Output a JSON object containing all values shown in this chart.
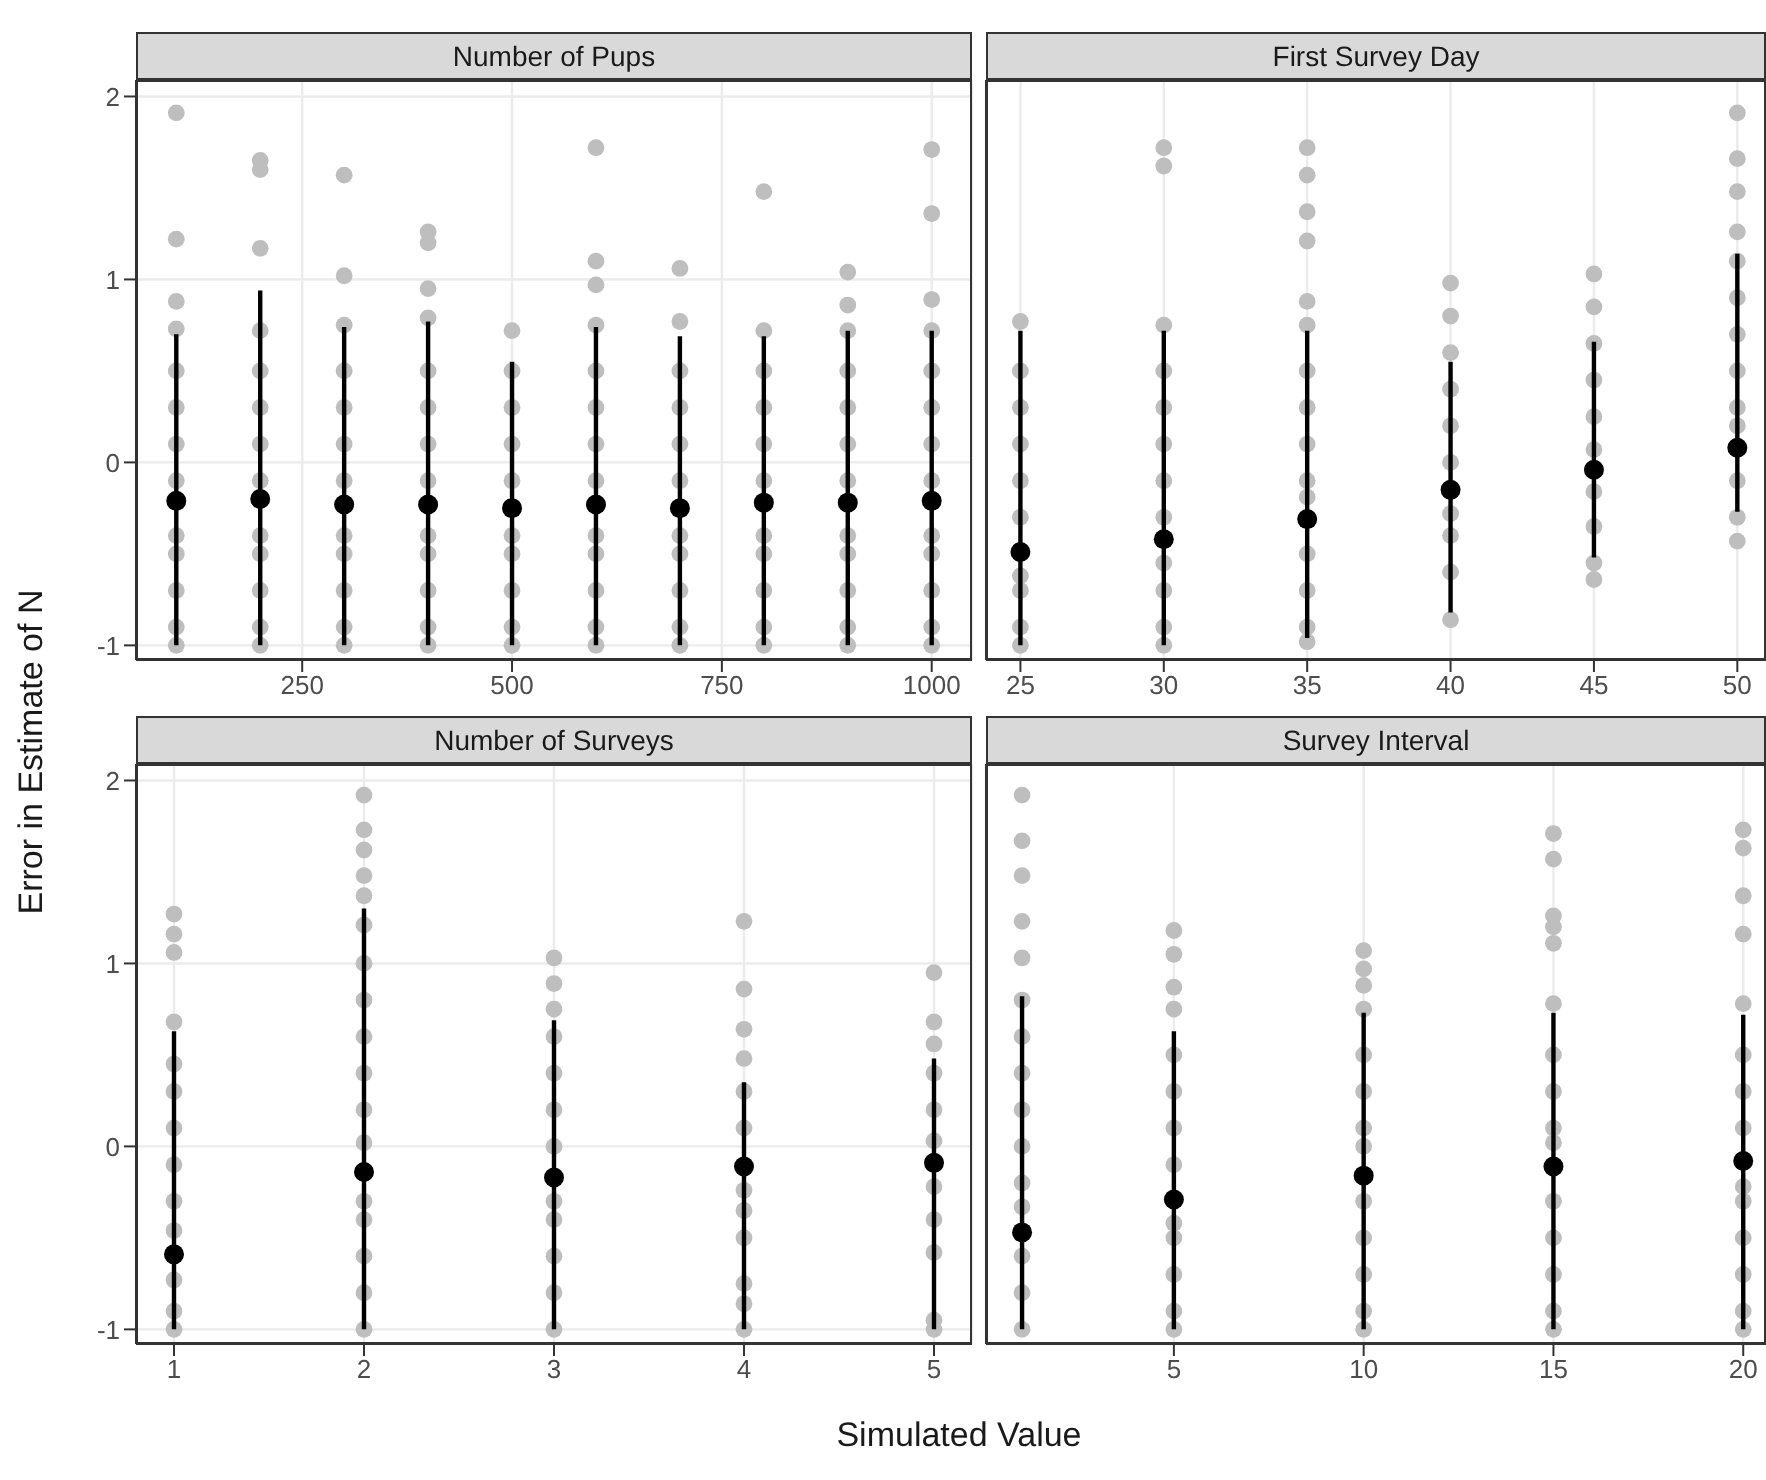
{
  "chart_data": [
    {
      "type": "scatter",
      "title": "Number of Pups",
      "ylabel": "Error in Estimate of N",
      "xlim": [
        52,
        1048
      ],
      "xticks": [
        250,
        500,
        750,
        1000
      ],
      "ylim": [
        -1.08,
        2.09
      ],
      "yticks": [
        -1,
        0,
        1,
        2
      ],
      "grid": true,
      "marker": "circle",
      "series": [
        {
          "color": "#bebebe",
          "x": [
            100,
            100,
            100,
            100,
            100,
            100,
            100,
            100,
            100,
            100,
            100,
            100,
            100,
            200,
            200,
            200,
            200,
            200,
            200,
            200,
            200,
            200,
            200,
            200,
            200,
            200,
            300,
            300,
            300,
            300,
            300,
            300,
            300,
            300,
            300,
            300,
            300,
            300,
            400,
            400,
            400,
            400,
            400,
            400,
            400,
            400,
            400,
            400,
            400,
            400,
            400,
            500,
            500,
            500,
            500,
            500,
            500,
            500,
            500,
            500,
            500,
            600,
            600,
            600,
            600,
            600,
            600,
            600,
            600,
            600,
            600,
            600,
            600,
            600,
            700,
            700,
            700,
            700,
            700,
            700,
            700,
            700,
            700,
            700,
            700,
            800,
            800,
            800,
            800,
            800,
            800,
            800,
            800,
            800,
            800,
            800,
            900,
            900,
            900,
            900,
            900,
            900,
            900,
            900,
            900,
            900,
            900,
            900,
            1000,
            1000,
            1000,
            1000,
            1000,
            1000,
            1000,
            1000,
            1000,
            1000,
            1000,
            1000,
            1000
          ],
          "values": [
            1.91,
            1.22,
            0.88,
            0.73,
            0.5,
            0.3,
            0.1,
            -0.1,
            -0.4,
            -0.5,
            -0.7,
            -0.9,
            -1,
            1.65,
            1.6,
            1.17,
            0.72,
            0.5,
            0.3,
            0.1,
            -0.1,
            -0.4,
            -0.5,
            -0.7,
            -0.9,
            -1,
            1.57,
            1.02,
            0.75,
            0.5,
            0.3,
            0.1,
            -0.1,
            -0.4,
            -0.5,
            -0.7,
            -0.9,
            -1,
            1.26,
            1.2,
            0.95,
            0.79,
            0.5,
            0.3,
            0.1,
            -0.1,
            -0.4,
            -0.5,
            -0.7,
            -0.9,
            -1,
            0.72,
            0.5,
            0.3,
            0.1,
            -0.1,
            -0.4,
            -0.5,
            -0.7,
            -0.9,
            -1,
            1.72,
            1.1,
            0.97,
            0.75,
            0.5,
            0.3,
            0.1,
            -0.1,
            -0.4,
            -0.5,
            -0.7,
            -0.9,
            -1,
            1.06,
            0.77,
            0.5,
            0.3,
            0.1,
            -0.1,
            -0.4,
            -0.5,
            -0.7,
            -0.9,
            -1,
            1.48,
            0.72,
            0.5,
            0.3,
            0.1,
            -0.1,
            -0.4,
            -0.5,
            -0.7,
            -0.9,
            -1,
            1.04,
            0.86,
            0.72,
            0.5,
            0.3,
            0.1,
            -0.1,
            -0.4,
            -0.5,
            -0.7,
            -0.9,
            -1,
            1.71,
            1.36,
            0.89,
            0.72,
            0.5,
            0.3,
            0.1,
            -0.1,
            -0.4,
            -0.5,
            -0.7,
            -0.9,
            -1
          ]
        },
        {
          "color": "#000000",
          "x": [
            100,
            200,
            300,
            400,
            500,
            600,
            700,
            800,
            900,
            1000
          ],
          "values": [
            -0.21,
            -0.2,
            -0.23,
            -0.23,
            -0.25,
            -0.23,
            -0.25,
            -0.22,
            -0.22,
            -0.21
          ],
          "errors": [
            [
              -1,
              0.7
            ],
            [
              -1,
              0.94
            ],
            [
              -1,
              0.74
            ],
            [
              -1,
              0.77
            ],
            [
              -1,
              0.55
            ],
            [
              -1,
              0.74
            ],
            [
              -1,
              0.69
            ],
            [
              -1,
              0.69
            ],
            [
              -1,
              0.72
            ],
            [
              -1,
              0.72
            ]
          ]
        }
      ]
    },
    {
      "type": "scatter",
      "title": "First Survey Day",
      "xlim": [
        23.8,
        51
      ],
      "xticks": [
        25,
        30,
        35,
        40,
        45,
        50
      ],
      "ylim": [
        -1.08,
        2.09
      ],
      "yticks": [
        -1,
        0,
        1,
        2
      ],
      "grid": true,
      "marker": "circle",
      "tick_labels": "x",
      "series": [
        {
          "color": "#bebebe",
          "x": [
            25,
            25,
            25,
            25,
            25,
            25,
            25,
            25,
            25,
            25,
            30,
            30,
            30,
            30,
            30,
            30,
            30,
            30,
            30,
            30,
            30,
            30,
            35,
            35,
            35,
            35,
            35,
            35,
            35,
            35,
            35,
            35,
            35,
            35,
            35,
            35,
            35,
            40,
            40,
            40,
            40,
            40,
            40,
            40,
            40,
            40,
            40,
            45,
            45,
            45,
            45,
            45,
            45,
            45,
            45,
            45,
            45,
            50,
            50,
            50,
            50,
            50,
            50,
            50,
            50,
            50,
            50,
            50,
            50,
            50
          ],
          "values": [
            0.77,
            0.5,
            0.3,
            0.1,
            -0.1,
            -0.3,
            -0.62,
            -0.7,
            -0.9,
            -1,
            1.72,
            1.62,
            0.75,
            0.5,
            0.3,
            0.1,
            -0.1,
            -0.3,
            -0.55,
            -0.7,
            -0.9,
            -1,
            1.72,
            1.57,
            1.37,
            1.21,
            0.88,
            0.75,
            0.5,
            0.3,
            0.1,
            -0.1,
            -0.19,
            -0.5,
            -0.7,
            -0.9,
            -0.98,
            0.98,
            0.8,
            0.6,
            0.4,
            0.2,
            0,
            -0.28,
            -0.4,
            -0.6,
            -0.86,
            1.03,
            0.85,
            0.65,
            0.45,
            0.25,
            0.07,
            -0.16,
            -0.35,
            -0.55,
            -0.64,
            1.91,
            1.66,
            1.48,
            1.26,
            1.1,
            0.9,
            0.7,
            0.5,
            0.3,
            0.2,
            -0.1,
            -0.3,
            -0.43
          ]
        },
        {
          "color": "#000000",
          "x": [
            25,
            30,
            35,
            40,
            45,
            50
          ],
          "values": [
            -0.49,
            -0.42,
            -0.31,
            -0.15,
            -0.04,
            0.08
          ],
          "errors": [
            [
              -1,
              0.72
            ],
            [
              -1,
              0.72
            ],
            [
              -0.96,
              0.72
            ],
            [
              -0.82,
              0.55
            ],
            [
              -0.52,
              0.66
            ],
            [
              -0.27,
              1.14
            ]
          ]
        }
      ]
    },
    {
      "type": "scatter",
      "title": "Number of Surveys",
      "xlabel": "Simulated Value",
      "xlim": [
        0.8,
        5.2
      ],
      "xticks": [
        1,
        2,
        3,
        4,
        5
      ],
      "ylim": [
        -1.08,
        2.09
      ],
      "yticks": [
        -1,
        0,
        1,
        2
      ],
      "grid": true,
      "marker": "circle",
      "series": [
        {
          "color": "#bebebe",
          "x": [
            1,
            1,
            1,
            1,
            1,
            1,
            1,
            1,
            1,
            1,
            1,
            1,
            1,
            2,
            2,
            2,
            2,
            2,
            2,
            2,
            2,
            2,
            2,
            2,
            2,
            2,
            2,
            2,
            2,
            2,
            3,
            3,
            3,
            3,
            3,
            3,
            3,
            3,
            3,
            3,
            3,
            3,
            4,
            4,
            4,
            4,
            4,
            4,
            4,
            4,
            4,
            4,
            4,
            4,
            5,
            5,
            5,
            5,
            5,
            5,
            5,
            5,
            5,
            5,
            5
          ],
          "values": [
            1.27,
            1.16,
            1.06,
            0.68,
            0.45,
            0.3,
            0.1,
            -0.1,
            -0.3,
            -0.46,
            -0.73,
            -0.9,
            -1,
            1.92,
            1.73,
            1.62,
            1.48,
            1.37,
            1.21,
            1.0,
            0.8,
            0.6,
            0.4,
            0.2,
            0.02,
            -0.3,
            -0.4,
            -0.6,
            -0.8,
            -1,
            1.03,
            0.89,
            0.75,
            0.6,
            0.4,
            0.2,
            0,
            -0.3,
            -0.4,
            -0.6,
            -0.8,
            -1,
            1.23,
            0.86,
            0.64,
            0.48,
            0.3,
            0.1,
            -0.24,
            -0.35,
            -0.5,
            -0.75,
            -0.86,
            -1,
            0.95,
            0.68,
            0.56,
            0.4,
            0.2,
            0.03,
            -0.22,
            -0.4,
            -0.58,
            -0.95,
            -1
          ]
        },
        {
          "color": "#000000",
          "x": [
            1,
            2,
            3,
            4,
            5
          ],
          "values": [
            -0.59,
            -0.14,
            -0.17,
            -0.11,
            -0.09
          ],
          "errors": [
            [
              -1,
              0.63
            ],
            [
              -1,
              1.3
            ],
            [
              -1,
              0.69
            ],
            [
              -1,
              0.35
            ],
            [
              -1,
              0.48
            ]
          ]
        }
      ]
    },
    {
      "type": "scatter",
      "title": "Survey Interval",
      "xlim": [
        0.05,
        20.6
      ],
      "xticks": [
        5,
        10,
        15,
        20
      ],
      "ylim": [
        -1.08,
        2.09
      ],
      "yticks": [
        -1,
        0,
        1,
        2
      ],
      "grid": true,
      "marker": "circle",
      "tick_labels": "x",
      "series": [
        {
          "color": "#bebebe",
          "x": [
            1,
            1,
            1,
            1,
            1,
            1,
            1,
            1,
            1,
            1,
            1,
            1,
            1,
            1,
            1,
            5,
            5,
            5,
            5,
            5,
            5,
            5,
            5,
            5,
            5,
            5,
            5,
            5,
            10,
            10,
            10,
            10,
            10,
            10,
            10,
            10,
            10,
            10,
            10,
            10,
            10,
            15,
            15,
            15,
            15,
            15,
            15,
            15,
            15,
            15,
            15,
            15,
            15,
            15,
            15,
            15,
            20,
            20,
            20,
            20,
            20,
            20,
            20,
            20,
            20,
            20,
            20,
            20,
            20,
            20
          ],
          "values": [
            1.92,
            1.67,
            1.48,
            1.23,
            1.03,
            0.8,
            0.6,
            0.4,
            0.2,
            0,
            -0.2,
            -0.33,
            -0.6,
            -0.8,
            -1,
            1.18,
            1.05,
            0.87,
            0.75,
            0.5,
            0.3,
            0.1,
            -0.1,
            -0.42,
            -0.5,
            -0.7,
            -0.9,
            -1,
            1.07,
            0.97,
            0.88,
            0.75,
            0.5,
            0.3,
            0.1,
            0.0,
            -0.3,
            -0.5,
            -0.7,
            -0.9,
            -1,
            1.71,
            1.57,
            1.26,
            1.2,
            1.11,
            0.78,
            0.5,
            0.3,
            0.1,
            0.02,
            -0.3,
            -0.5,
            -0.7,
            -0.9,
            -1,
            1.73,
            1.63,
            1.37,
            1.16,
            0.78,
            0.5,
            0.3,
            0.1,
            -0.22,
            -0.3,
            -0.5,
            -0.7,
            -0.9,
            -1
          ]
        },
        {
          "color": "#000000",
          "x": [
            1,
            5,
            10,
            15,
            20
          ],
          "values": [
            -0.47,
            -0.29,
            -0.16,
            -0.11,
            -0.08
          ],
          "errors": [
            [
              -1,
              0.82
            ],
            [
              -1,
              0.63
            ],
            [
              -1,
              0.73
            ],
            [
              -1,
              0.73
            ],
            [
              -1,
              0.72
            ]
          ]
        }
      ]
    }
  ]
}
